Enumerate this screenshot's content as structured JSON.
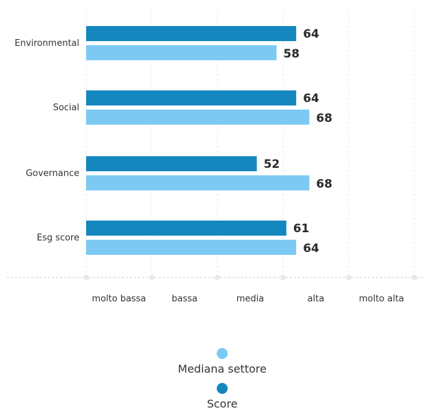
{
  "chart_data": {
    "type": "bar",
    "orientation": "horizontal",
    "categories": [
      "Environmental",
      "Social",
      "Governance",
      "Esg score"
    ],
    "series": [
      {
        "name": "Score",
        "values": [
          64,
          64,
          52,
          61
        ],
        "color": "#1487bf"
      },
      {
        "name": "Mediana settore",
        "values": [
          58,
          68,
          68,
          64
        ],
        "color": "#7cc9f4"
      }
    ],
    "xlim": [
      0,
      100
    ],
    "x_tick_labels": [
      "molto bassa",
      "bassa",
      "media",
      "alta",
      "molto alta"
    ],
    "grid": true,
    "legend": {
      "placement": "bottom-center",
      "entries": [
        {
          "name": "Mediana settore",
          "color": "#7cc9f4"
        },
        {
          "name": "Score",
          "color": "#1487bf"
        }
      ]
    }
  }
}
